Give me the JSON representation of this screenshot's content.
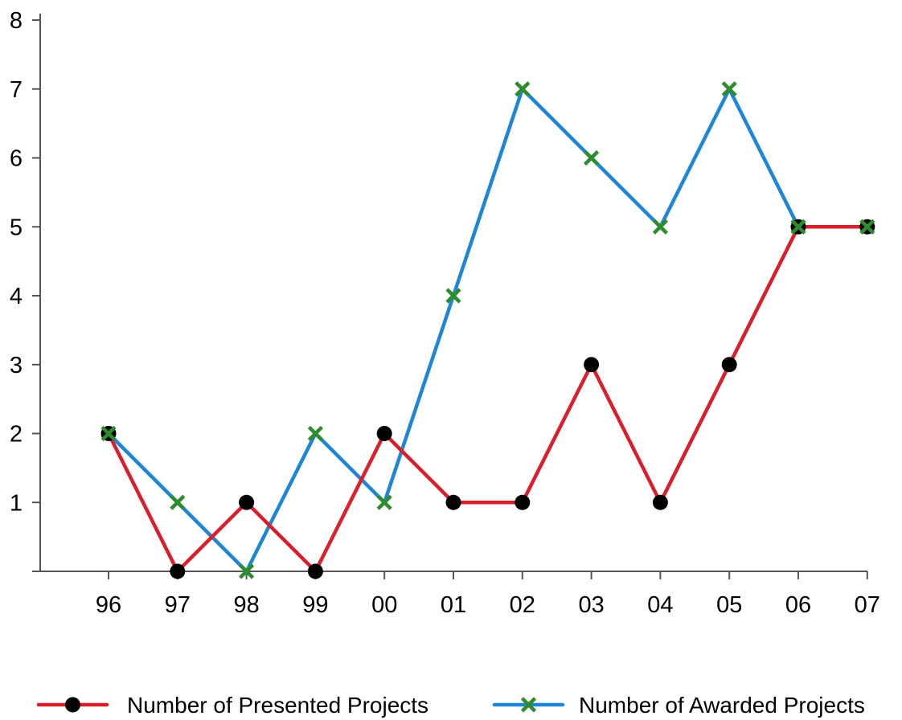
{
  "chart_data": {
    "type": "line",
    "title": "",
    "xlabel": "",
    "ylabel": "",
    "categories": [
      "96",
      "97",
      "98",
      "99",
      "00",
      "01",
      "02",
      "03",
      "04",
      "05",
      "06",
      "07"
    ],
    "y_ticks": [
      1,
      2,
      3,
      4,
      5,
      6,
      7,
      8
    ],
    "ylim": [
      0,
      8
    ],
    "grid": false,
    "legend_position": "bottom",
    "series": [
      {
        "name": "Number of Presented Projects",
        "marker": "circle",
        "color": "#d81f2a",
        "marker_color": "#000000",
        "values": [
          2,
          0,
          1,
          0,
          2,
          1,
          1,
          3,
          1,
          3,
          5,
          5
        ]
      },
      {
        "name": "Number of Awarded Projects",
        "marker": "x",
        "color": "#1f86d6",
        "marker_color": "#2e8b2e",
        "values": [
          2,
          1,
          0,
          2,
          1,
          4,
          7,
          6,
          5,
          7,
          5,
          5
        ]
      }
    ]
  }
}
